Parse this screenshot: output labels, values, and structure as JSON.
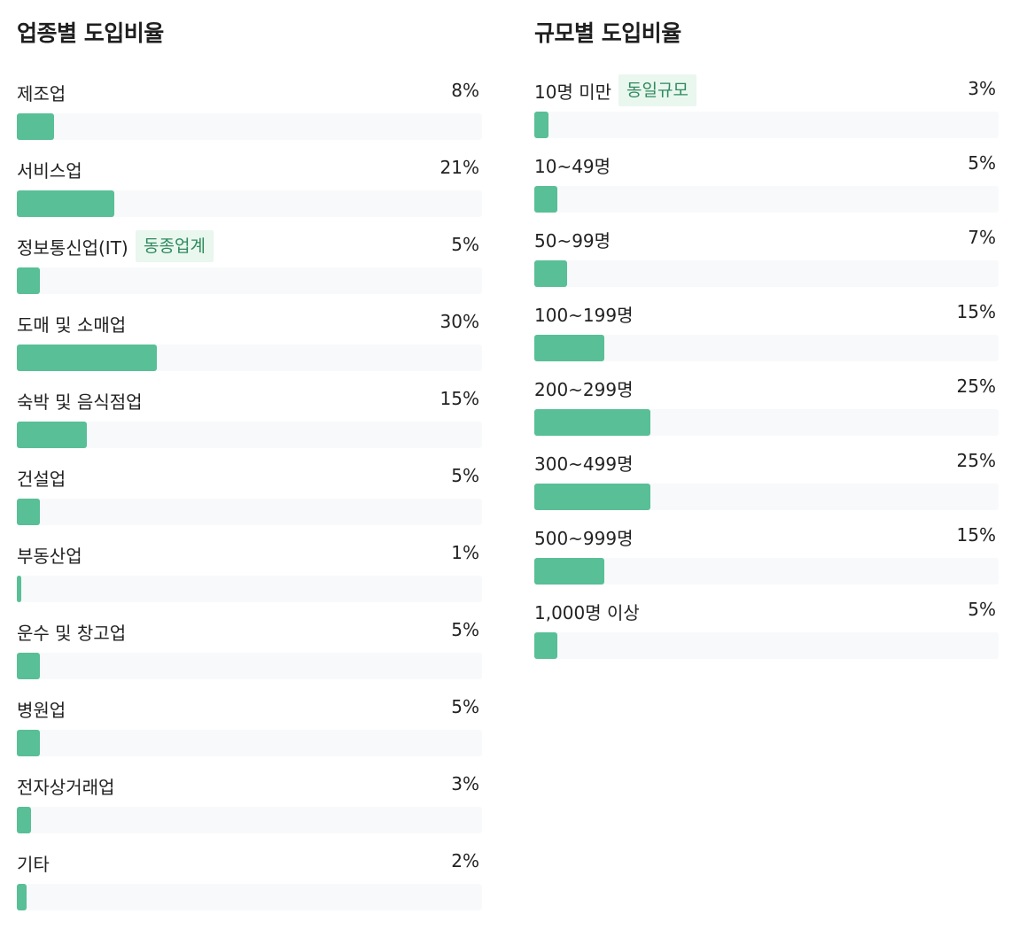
{
  "chart_data": [
    {
      "type": "bar",
      "title": "업종별 도입비율",
      "categories": [
        "제조업",
        "서비스업",
        "정보통신업(IT)",
        "도매 및 소매업",
        "숙박 및 음식점업",
        "건설업",
        "부동산업",
        "운수 및 창고업",
        "병원업",
        "전자상거래업",
        "기타"
      ],
      "value_labels": [
        "8%",
        "21%",
        "5%",
        "30%",
        "15%",
        "5%",
        "1%",
        "5%",
        "5%",
        "3%",
        "2%"
      ],
      "values": [
        8,
        21,
        5,
        30,
        15,
        5,
        1,
        5,
        5,
        3,
        2
      ],
      "badges": [
        "",
        "",
        "동종업계",
        "",
        "",
        "",
        "",
        "",
        "",
        "",
        ""
      ],
      "xlim": [
        0,
        100
      ],
      "xlabel": "",
      "ylabel": "",
      "color": "#58bf96",
      "track_color": "#f8f9fa"
    },
    {
      "type": "bar",
      "title": "규모별 도입비율",
      "categories": [
        "10명 미만",
        "10~49명",
        "50~99명",
        "100~199명",
        "200~299명",
        "300~499명",
        "500~999명",
        "1,000명 이상"
      ],
      "value_labels": [
        "3%",
        "5%",
        "7%",
        "15%",
        "25%",
        "25%",
        "15%",
        "5%"
      ],
      "values": [
        3,
        5,
        7,
        15,
        25,
        25,
        15,
        5
      ],
      "badges": [
        "동일규모",
        "",
        "",
        "",
        "",
        "",
        "",
        ""
      ],
      "xlim": [
        0,
        100
      ],
      "xlabel": "",
      "ylabel": "",
      "color": "#58bf96",
      "track_color": "#f8f9fa"
    }
  ],
  "badge_colors": {
    "text": "#2f8a5c",
    "background": "#e9f7ef"
  }
}
